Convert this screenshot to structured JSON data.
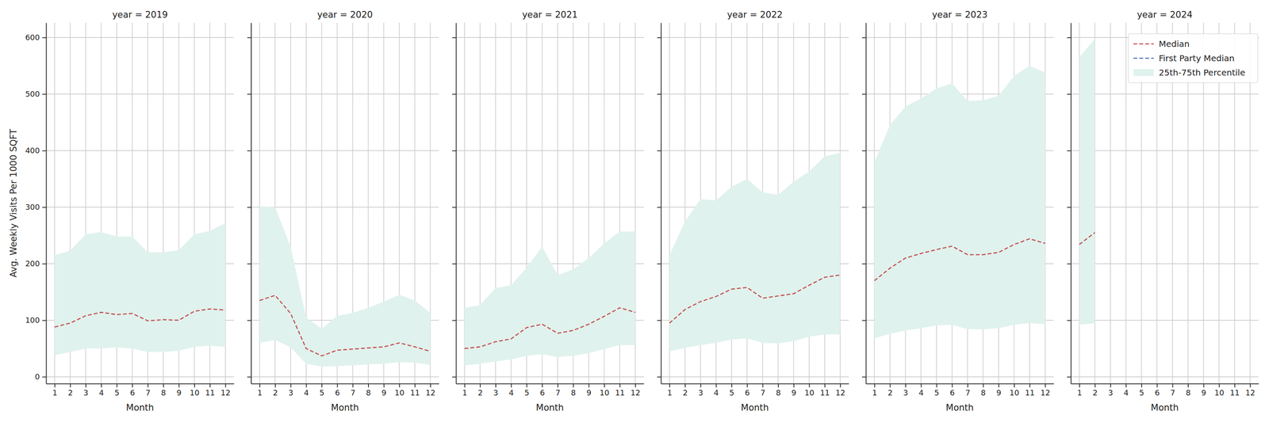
{
  "chart_data": [
    {
      "type": "line",
      "title": "year = 2019",
      "x_label": "Month",
      "y_label": "Avg. Weekly Visits Per 1000 SQFT",
      "x": [
        1,
        2,
        3,
        4,
        5,
        6,
        7,
        8,
        9,
        10,
        11,
        12
      ],
      "xlim": [
        0.45,
        12.55
      ],
      "xticks": [
        1,
        2,
        3,
        4,
        5,
        6,
        7,
        8,
        9,
        10,
        11,
        12
      ],
      "ylim": [
        -12,
        626
      ],
      "yticks": [
        0,
        100,
        200,
        300,
        400,
        500,
        600
      ],
      "grid": true,
      "series": [
        {
          "name": "Median",
          "color": "#c44e52",
          "line_style": "dashed",
          "values": [
            88,
            95,
            108,
            114,
            110,
            112,
            99,
            101,
            100,
            116,
            120,
            118
          ]
        },
        {
          "name": "First Party Median",
          "color": "#4c72b0",
          "line_style": "dashed",
          "values": [
            null,
            null,
            null,
            null,
            null,
            null,
            null,
            null,
            null,
            null,
            null,
            null
          ]
        },
        {
          "name": "25th-75th Percentile",
          "type": "area",
          "color": "#e0f2ed",
          "lower": [
            38,
            44,
            50,
            50,
            52,
            50,
            44,
            44,
            46,
            53,
            55,
            53
          ],
          "upper": [
            215,
            223,
            252,
            256,
            248,
            248,
            220,
            220,
            224,
            252,
            258,
            272
          ]
        }
      ]
    },
    {
      "type": "line",
      "title": "year = 2020",
      "x_label": "Month",
      "tick_labels": "x",
      "x": [
        1,
        2,
        3,
        4,
        5,
        6,
        7,
        8,
        9,
        10,
        11,
        12
      ],
      "xlim": [
        0.45,
        12.55
      ],
      "xticks": [
        1,
        2,
        3,
        4,
        5,
        6,
        7,
        8,
        9,
        10,
        11,
        12
      ],
      "ylim": [
        -12,
        626
      ],
      "yticks": [
        0,
        100,
        200,
        300,
        400,
        500,
        600
      ],
      "grid": true,
      "series": [
        {
          "name": "Median",
          "color": "#c44e52",
          "line_style": "dashed",
          "values": [
            135,
            144,
            112,
            50,
            37,
            47,
            49,
            51,
            53,
            60,
            53,
            45
          ]
        },
        {
          "name": "First Party Median",
          "color": "#4c72b0",
          "line_style": "dashed",
          "values": [
            null,
            null,
            null,
            null,
            null,
            null,
            null,
            null,
            null,
            null,
            null,
            null
          ]
        },
        {
          "name": "25th-75th Percentile",
          "type": "area",
          "color": "#e0f2ed",
          "lower": [
            60,
            65,
            52,
            23,
            18,
            19,
            20,
            22,
            23,
            26,
            25,
            21
          ],
          "upper": [
            302,
            300,
            230,
            105,
            85,
            108,
            113,
            122,
            133,
            145,
            135,
            113
          ]
        }
      ]
    },
    {
      "type": "line",
      "title": "year = 2021",
      "x_label": "Month",
      "tick_labels": "x",
      "x": [
        1,
        2,
        3,
        4,
        5,
        6,
        7,
        8,
        9,
        10,
        11,
        12
      ],
      "xlim": [
        0.45,
        12.55
      ],
      "xticks": [
        1,
        2,
        3,
        4,
        5,
        6,
        7,
        8,
        9,
        10,
        11,
        12
      ],
      "ylim": [
        -12,
        626
      ],
      "yticks": [
        0,
        100,
        200,
        300,
        400,
        500,
        600
      ],
      "grid": true,
      "series": [
        {
          "name": "Median",
          "color": "#c44e52",
          "line_style": "dashed",
          "values": [
            50,
            53,
            62,
            67,
            87,
            93,
            77,
            82,
            93,
            107,
            122,
            114
          ]
        },
        {
          "name": "First Party Median",
          "color": "#4c72b0",
          "line_style": "dashed",
          "values": [
            null,
            null,
            null,
            null,
            null,
            null,
            null,
            null,
            null,
            null,
            null,
            null
          ]
        },
        {
          "name": "25th-75th Percentile",
          "type": "area",
          "color": "#e0f2ed",
          "lower": [
            20,
            23,
            27,
            31,
            37,
            40,
            35,
            37,
            42,
            49,
            56,
            56
          ],
          "upper": [
            122,
            127,
            157,
            162,
            193,
            230,
            180,
            190,
            210,
            236,
            257,
            257
          ]
        }
      ]
    },
    {
      "type": "line",
      "title": "year = 2022",
      "x_label": "Month",
      "tick_labels": "x",
      "x": [
        1,
        2,
        3,
        4,
        5,
        6,
        7,
        8,
        9,
        10,
        11,
        12
      ],
      "xlim": [
        0.45,
        12.55
      ],
      "xticks": [
        1,
        2,
        3,
        4,
        5,
        6,
        7,
        8,
        9,
        10,
        11,
        12
      ],
      "ylim": [
        -12,
        626
      ],
      "yticks": [
        0,
        100,
        200,
        300,
        400,
        500,
        600
      ],
      "grid": true,
      "series": [
        {
          "name": "Median",
          "color": "#c44e52",
          "line_style": "dashed",
          "values": [
            95,
            119,
            133,
            142,
            155,
            158,
            139,
            143,
            147,
            162,
            176,
            180
          ]
        },
        {
          "name": "First Party Median",
          "color": "#4c72b0",
          "line_style": "dashed",
          "values": [
            null,
            null,
            null,
            null,
            null,
            null,
            null,
            null,
            null,
            null,
            null,
            null
          ]
        },
        {
          "name": "25th-75th Percentile",
          "type": "area",
          "color": "#e0f2ed",
          "lower": [
            45,
            51,
            56,
            60,
            66,
            68,
            60,
            59,
            63,
            71,
            75,
            75
          ],
          "upper": [
            215,
            275,
            314,
            312,
            336,
            350,
            326,
            322,
            345,
            363,
            390,
            396
          ]
        }
      ]
    },
    {
      "type": "line",
      "title": "year = 2023",
      "x_label": "Month",
      "tick_labels": "x",
      "x": [
        1,
        2,
        3,
        4,
        5,
        6,
        7,
        8,
        9,
        10,
        11,
        12
      ],
      "xlim": [
        0.45,
        12.55
      ],
      "xticks": [
        1,
        2,
        3,
        4,
        5,
        6,
        7,
        8,
        9,
        10,
        11,
        12
      ],
      "ylim": [
        -12,
        626
      ],
      "yticks": [
        0,
        100,
        200,
        300,
        400,
        500,
        600
      ],
      "grid": true,
      "series": [
        {
          "name": "Median",
          "color": "#c44e52",
          "line_style": "dashed",
          "values": [
            170,
            192,
            210,
            218,
            225,
            231,
            216,
            216,
            220,
            234,
            244,
            236
          ]
        },
        {
          "name": "First Party Median",
          "color": "#4c72b0",
          "line_style": "dashed",
          "values": [
            null,
            null,
            null,
            null,
            null,
            null,
            null,
            null,
            null,
            null,
            null,
            null
          ]
        },
        {
          "name": "25th-75th Percentile",
          "type": "area",
          "color": "#e0f2ed",
          "lower": [
            68,
            76,
            82,
            86,
            91,
            92,
            84,
            84,
            86,
            92,
            95,
            93
          ],
          "upper": [
            380,
            445,
            478,
            492,
            510,
            519,
            488,
            489,
            497,
            532,
            550,
            538
          ]
        }
      ]
    },
    {
      "type": "line",
      "title": "year = 2024",
      "x_label": "Month",
      "tick_labels": "x",
      "legend": "upper right",
      "x": [
        1,
        2,
        3,
        4,
        5,
        6,
        7,
        8,
        9,
        10,
        11,
        12
      ],
      "xlim": [
        0.45,
        12.55
      ],
      "xticks": [
        1,
        2,
        3,
        4,
        5,
        6,
        7,
        8,
        9,
        10,
        11,
        12
      ],
      "ylim": [
        -12,
        626
      ],
      "yticks": [
        0,
        100,
        200,
        300,
        400,
        500,
        600
      ],
      "grid": true,
      "series": [
        {
          "name": "Median",
          "color": "#c44e52",
          "line_style": "dashed",
          "values": [
            234,
            255,
            null,
            null,
            null,
            null,
            null,
            null,
            null,
            null,
            null,
            null
          ]
        },
        {
          "name": "First Party Median",
          "color": "#4c72b0",
          "line_style": "dashed",
          "values": [
            null,
            null,
            null,
            null,
            null,
            null,
            null,
            null,
            null,
            null,
            null,
            null
          ]
        },
        {
          "name": "25th-75th Percentile",
          "type": "area",
          "color": "#e0f2ed",
          "lower": [
            92,
            95,
            null,
            null,
            null,
            null,
            null,
            null,
            null,
            null,
            null,
            null
          ],
          "upper": [
            565,
            598,
            null,
            null,
            null,
            null,
            null,
            null,
            null,
            null,
            null,
            null
          ]
        }
      ]
    }
  ]
}
